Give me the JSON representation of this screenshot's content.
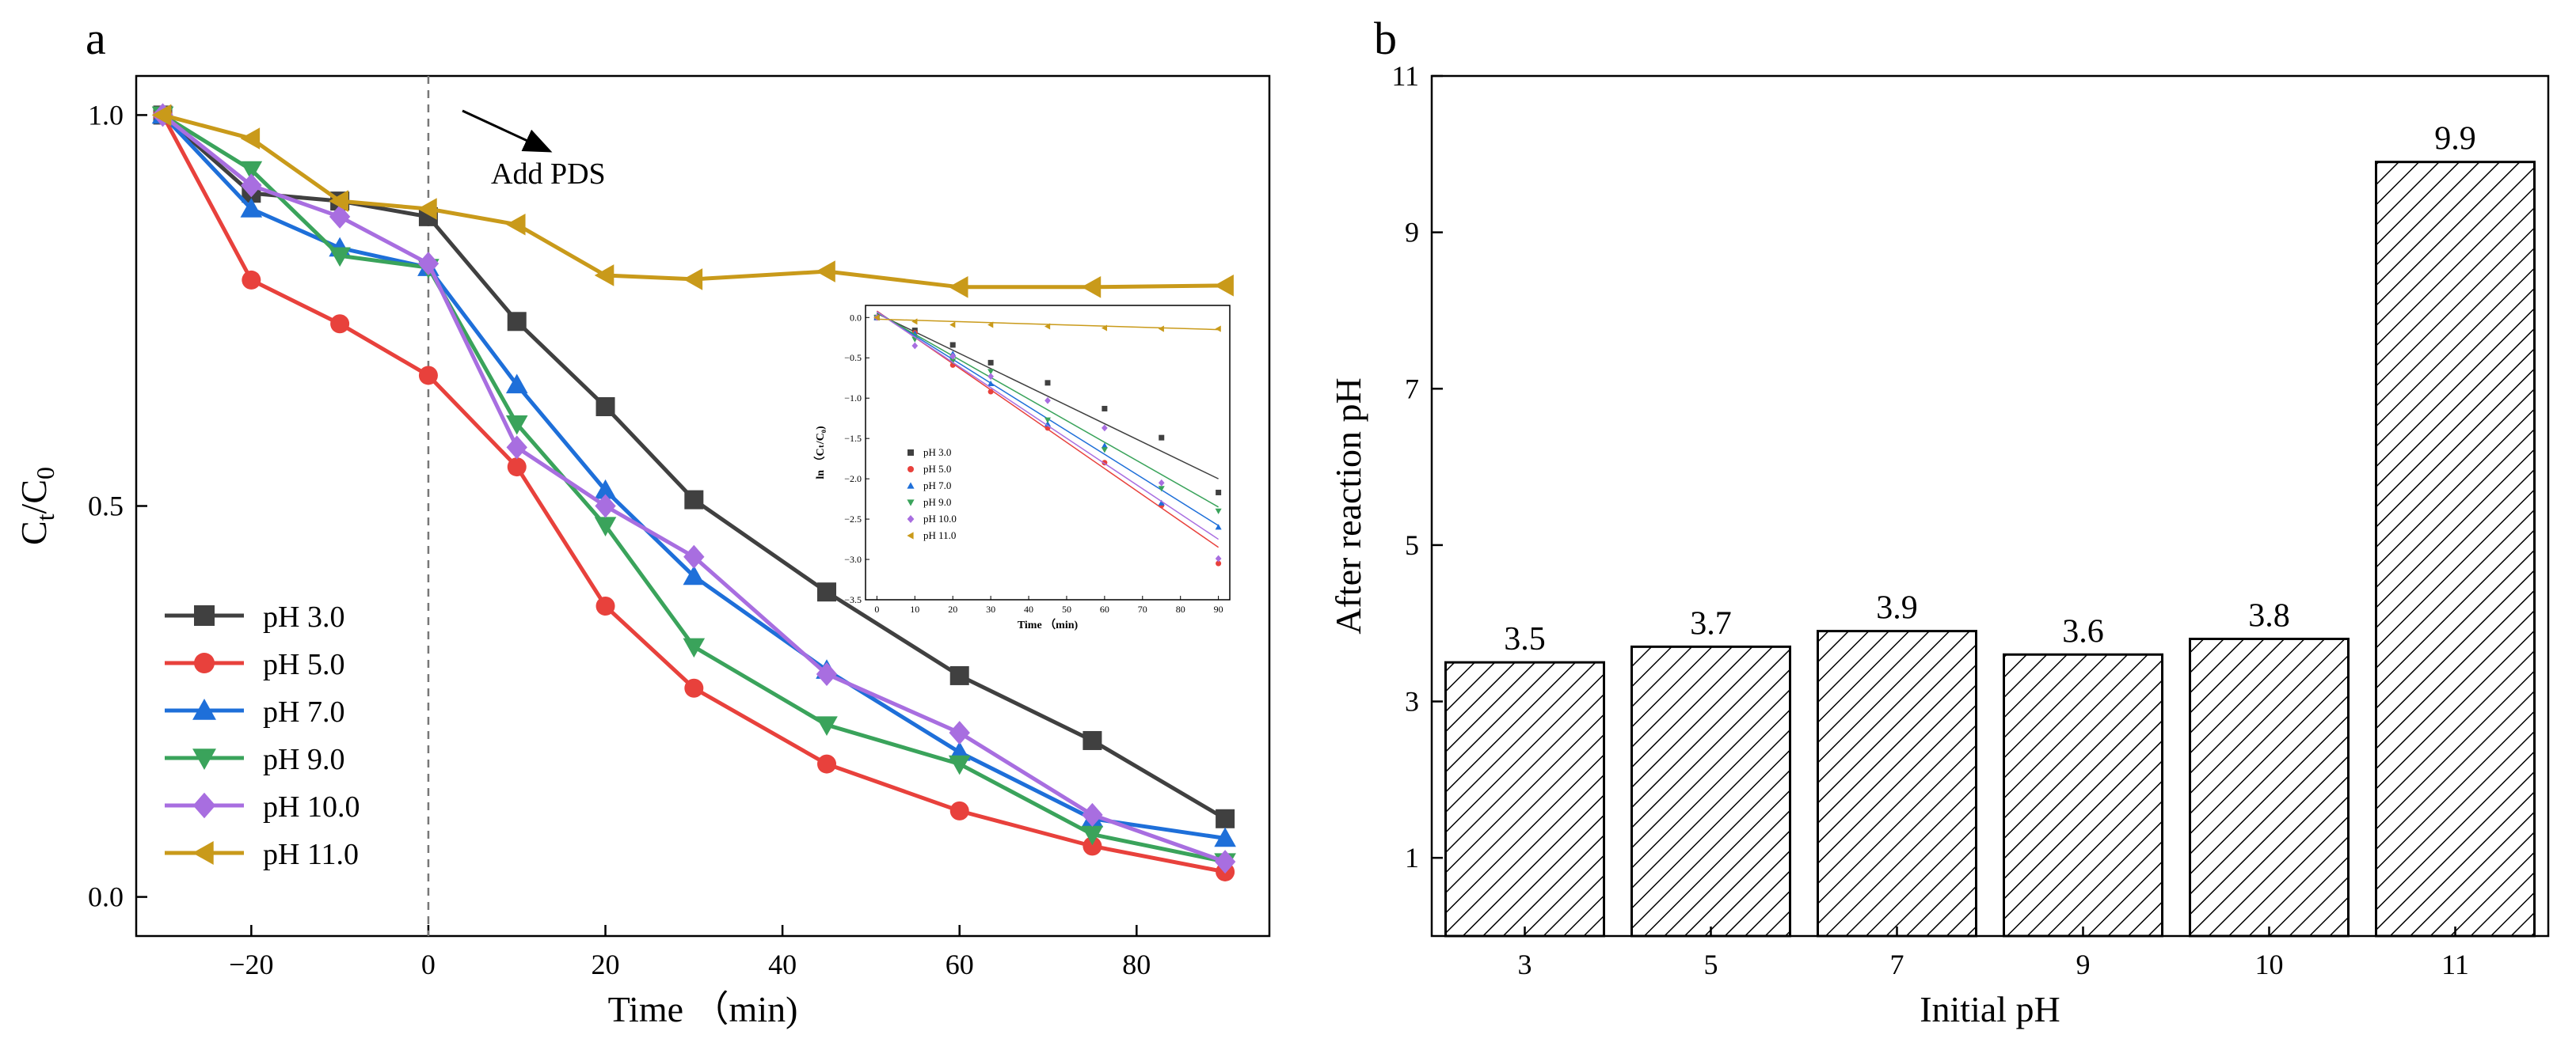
{
  "chart_data": [
    {
      "panel": "a",
      "type": "line",
      "xlabel": "Time （min)",
      "ylabel_main": "C",
      "ylabel_sub1": "t",
      "ylabel_mid": "/C",
      "ylabel_sub2": "0",
      "xlim": [
        -33,
        95
      ],
      "ylim": [
        -0.05,
        1.05
      ],
      "xticks": [
        -20,
        0,
        20,
        40,
        60,
        80
      ],
      "xtick_labels": [
        "−20",
        "0",
        "20",
        "40",
        "60",
        "80"
      ],
      "yticks": [
        0.0,
        0.5,
        1.0
      ],
      "ytick_labels": [
        "0.0",
        "0.5",
        "1.0"
      ],
      "x": [
        -30,
        -20,
        -10,
        0,
        10,
        20,
        30,
        45,
        60,
        75,
        90
      ],
      "annotation": {
        "text": "Add PDS",
        "x": 0
      },
      "legend_position": "bottom-left",
      "series": [
        {
          "name": "pH 3.0",
          "color": "#404040",
          "marker": "square",
          "values": [
            1.0,
            0.9,
            0.89,
            0.87,
            0.736,
            0.627,
            0.508,
            0.39,
            0.283,
            0.2,
            0.1
          ]
        },
        {
          "name": "pH 5.0",
          "color": "#e8413c",
          "marker": "circle",
          "values": [
            1.0,
            0.789,
            0.733,
            0.667,
            0.55,
            0.372,
            0.267,
            0.17,
            0.11,
            0.065,
            0.032
          ]
        },
        {
          "name": "pH 7.0",
          "color": "#1e6fd9",
          "marker": "triangle-up",
          "values": [
            1.0,
            0.88,
            0.83,
            0.805,
            0.655,
            0.52,
            0.41,
            0.29,
            0.185,
            0.1,
            0.075
          ]
        },
        {
          "name": "pH 9.0",
          "color": "#3aa35b",
          "marker": "triangle-down",
          "values": [
            1.0,
            0.93,
            0.82,
            0.805,
            0.605,
            0.475,
            0.32,
            0.22,
            0.17,
            0.08,
            0.045
          ]
        },
        {
          "name": "pH 10.0",
          "color": "#a86ee0",
          "marker": "diamond",
          "values": [
            1.0,
            0.91,
            0.87,
            0.81,
            0.575,
            0.5,
            0.435,
            0.285,
            0.21,
            0.105,
            0.045
          ]
        },
        {
          "name": "pH 11.0",
          "color": "#c99a1a",
          "marker": "triangle-left",
          "values": [
            1.0,
            0.97,
            0.89,
            0.88,
            0.86,
            0.795,
            0.79,
            0.8,
            0.78,
            0.78,
            0.782
          ]
        }
      ],
      "inset": {
        "xlabel": "Time （min)",
        "ylabel": "ln （Cₜ/C₀)",
        "xlim": [
          -3,
          93
        ],
        "ylim": [
          -3.5,
          0.15
        ],
        "xticks": [
          0,
          10,
          20,
          30,
          40,
          50,
          60,
          70,
          80,
          90
        ],
        "yticks": [
          0.0,
          -0.5,
          -1.0,
          -1.5,
          -2.0,
          -2.5,
          -3.0,
          -3.5
        ],
        "ytick_labels": [
          "0.0",
          "−0.5",
          "−1.0",
          "−1.5",
          "−2.0",
          "−2.5",
          "−3.0",
          "−3.5"
        ],
        "x": [
          0,
          10,
          20,
          30,
          45,
          60,
          75,
          90
        ],
        "series": [
          {
            "name": "pH 3.0",
            "values": [
              0.0,
              -0.16,
              -0.34,
              -0.56,
              -0.81,
              -1.13,
              -1.49,
              -2.17
            ],
            "fit": [
              0.05,
              -2.0
            ]
          },
          {
            "name": "pH 5.0",
            "values": [
              0.0,
              -0.19,
              -0.59,
              -0.92,
              -1.37,
              -1.8,
              -2.33,
              -3.05
            ],
            "fit": [
              0.08,
              -2.85
            ]
          },
          {
            "name": "pH 7.0",
            "values": [
              0.0,
              -0.2,
              -0.45,
              -0.82,
              -1.32,
              -1.59,
              -2.3,
              -2.6
            ],
            "fit": [
              0.07,
              -2.58
            ]
          },
          {
            "name": "pH 9.0",
            "values": [
              0.0,
              -0.27,
              -0.54,
              -0.67,
              -1.27,
              -1.64,
              -2.12,
              -2.4
            ],
            "fit": [
              0.06,
              -2.35
            ]
          },
          {
            "name": "pH 10.0",
            "values": [
              0.0,
              -0.35,
              -0.48,
              -0.73,
              -1.03,
              -1.37,
              -2.05,
              -2.99
            ],
            "fit": [
              0.07,
              -2.75
            ]
          },
          {
            "name": "pH 11.0",
            "values": [
              0.0,
              -0.05,
              -0.09,
              -0.09,
              -0.11,
              -0.13,
              -0.14,
              -0.14
            ],
            "fit": [
              -0.02,
              -0.15
            ]
          }
        ]
      }
    },
    {
      "panel": "b",
      "type": "bar",
      "xlabel": "Initial pH",
      "ylabel": "After reaction pH",
      "categories": [
        "3",
        "5",
        "7",
        "9",
        "10",
        "11"
      ],
      "values": [
        3.5,
        3.7,
        3.9,
        3.6,
        3.8,
        9.9
      ],
      "value_labels": [
        "3.5",
        "3.7",
        "3.9",
        "3.6",
        "3.8",
        "9.9"
      ],
      "ylim": [
        0,
        11
      ],
      "yticks": [
        1,
        3,
        5,
        7,
        9,
        11
      ],
      "ytick_labels": [
        "1",
        "3",
        "5",
        "7",
        "9",
        "11"
      ],
      "bar_fill": "diagonal hatch"
    }
  ]
}
